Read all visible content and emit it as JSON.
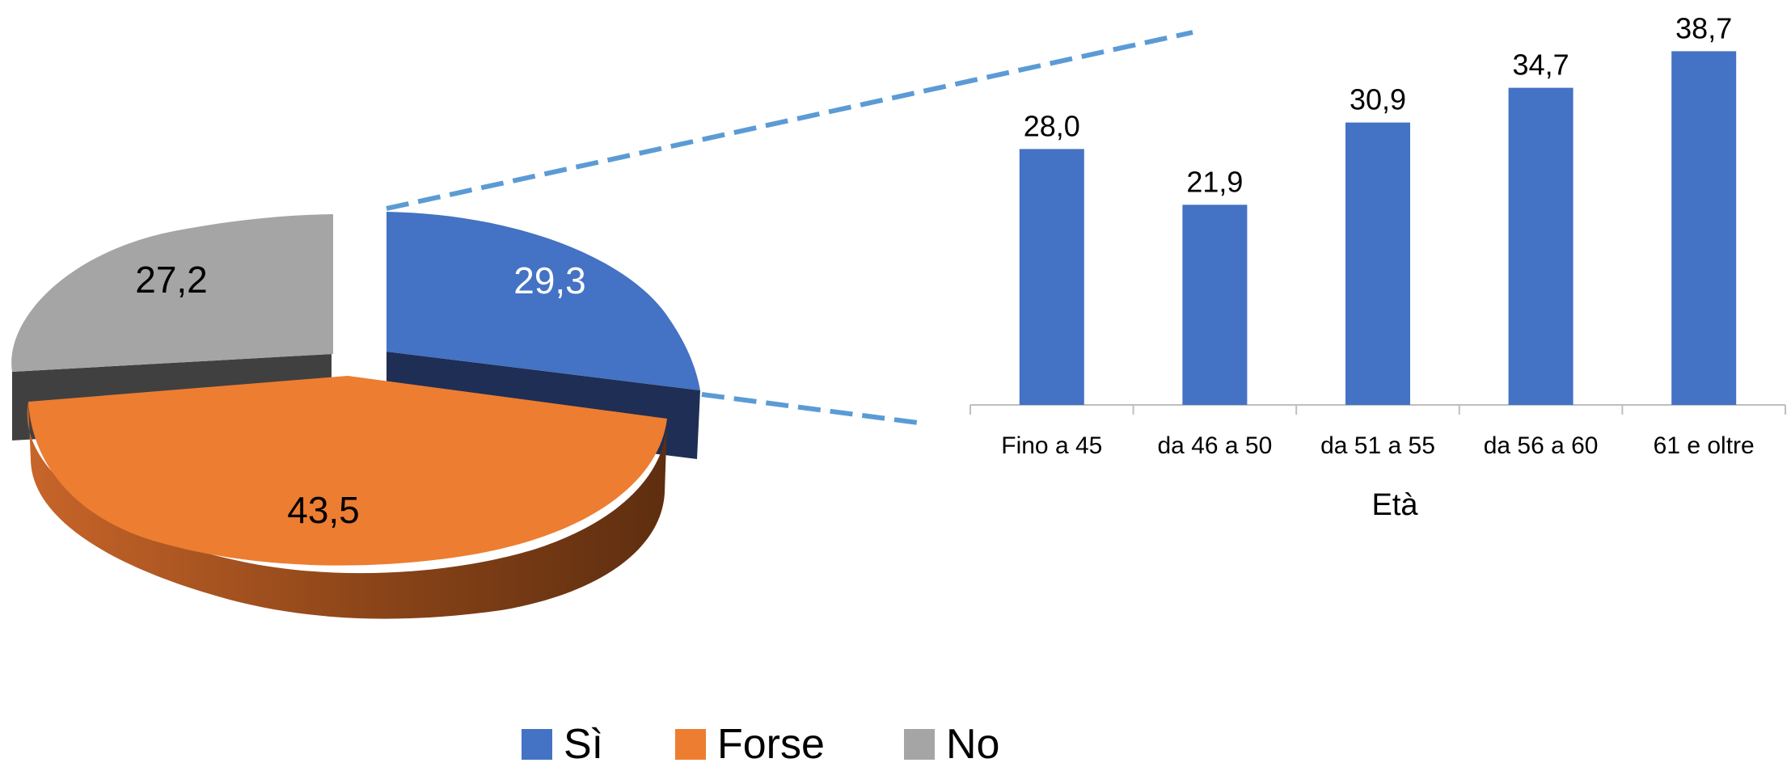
{
  "chart_data": [
    {
      "type": "pie",
      "style": "3d-exploded",
      "slices": [
        {
          "name": "Sì",
          "value": 29.3,
          "label": "29,3",
          "color": "#4472C4"
        },
        {
          "name": "Forse",
          "value": 43.5,
          "label": "43,5",
          "color": "#ED7D31"
        },
        {
          "name": "No",
          "value": 27.2,
          "label": "27,2",
          "color": "#A5A5A5"
        }
      ],
      "legend": {
        "placement": "bottom",
        "items": [
          {
            "name": "Sì",
            "color": "#4472C4"
          },
          {
            "name": "Forse",
            "color": "#ED7D31"
          },
          {
            "name": "No",
            "color": "#A5A5A5"
          }
        ]
      },
      "connector_color": "#5B9BD5"
    },
    {
      "type": "bar",
      "categories": [
        "Fino a 45",
        "da 46 a 50",
        "da 51 a 55",
        "da 56 a 60",
        "61 e oltre"
      ],
      "values": [
        28.0,
        21.9,
        30.9,
        34.7,
        38.7
      ],
      "value_labels": [
        "28,0",
        "21,9",
        "30,9",
        "34,7",
        "38,7"
      ],
      "xlabel": "Età",
      "ylabel": "",
      "ylim": [
        0,
        40
      ],
      "grid": false,
      "color": "#4472C4"
    }
  ]
}
